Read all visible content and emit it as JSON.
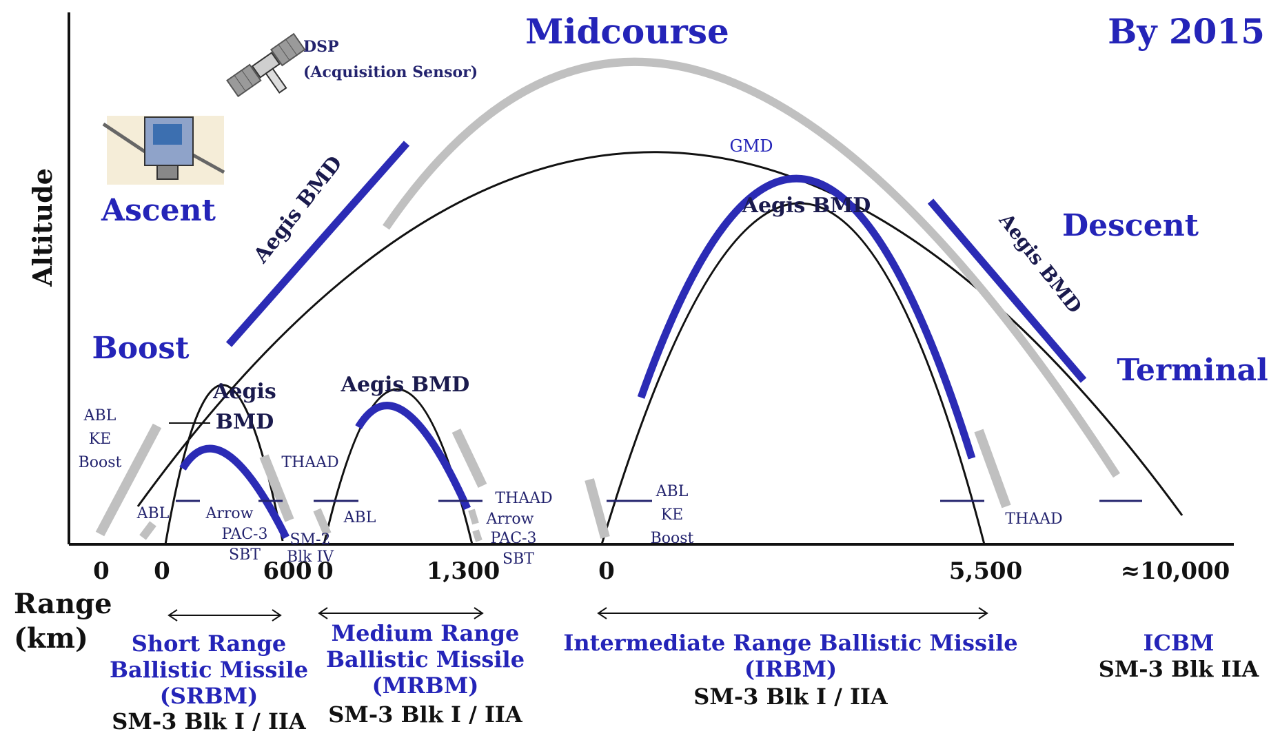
{
  "header": {
    "year_label": "By 2015",
    "y_axis_label": "Altitude",
    "x_axis_label_line1": "Range",
    "x_axis_label_line2": "(km)"
  },
  "phases": {
    "midcourse": "Midcourse",
    "ascent": "Ascent",
    "boost": "Boost",
    "descent": "Descent",
    "terminal": "Terminal"
  },
  "sensors": {
    "dsp_line1": "DSP",
    "dsp_line2": "(Acquisition Sensor)",
    "dsp_icon": "satellite-icon",
    "ascent_icon": "satellite-icon"
  },
  "trajectory_labels": {
    "icbm_ascent_aegis": "Aegis BMD",
    "icbm_descent_aegis": "Aegis BMD",
    "gmd": "GMD",
    "irbm_aegis": "Aegis BMD",
    "mrbm_aegis": "Aegis BMD",
    "srbm_aegis_line1": "Aegis",
    "srbm_aegis_line2": "BMD"
  },
  "small_labels": {
    "abl_ke_boost_left_1": "ABL",
    "abl_ke_boost_left_2": "KE",
    "abl_ke_boost_left_3": "Boost",
    "abl_srbm": "ABL",
    "thaad_srbm": "THAAD",
    "arrow_srbm": "Arrow",
    "pac3_srbm": "PAC-3",
    "sbt_srbm": "SBT",
    "sm2_line1": "SM-2",
    "sm2_line2": "Blk IV",
    "abl_mrbm": "ABL",
    "thaad_mrbm": "THAAD",
    "arrow_mrbm": "Arrow",
    "pac3_mrbm": "PAC-3",
    "sbt_mrbm": "SBT",
    "abl_ke_boost_irbm_1": "ABL",
    "abl_ke_boost_irbm_2": "KE",
    "abl_ke_boost_irbm_3": "Boost",
    "thaad_irbm": "THAAD"
  },
  "range_ticks": [
    "0",
    "0",
    "600",
    "0",
    "1,300",
    "0",
    "5,500",
    "≈10,000"
  ],
  "categories": [
    {
      "line1": "Short Range",
      "line2": "Ballistic Missile",
      "line3": "(SRBM)",
      "interceptor": "SM-3 Blk I / IIA"
    },
    {
      "line1": "Medium Range",
      "line2": "Ballistic Missile",
      "line3": "(MRBM)",
      "interceptor": "SM-3 Blk I / IIA"
    },
    {
      "line1": "Intermediate Range Ballistic Missile",
      "line2": "(IRBM)",
      "interceptor": "SM-3 Blk I / IIA"
    },
    {
      "line1": "ICBM",
      "interceptor": "SM-3 Blk IIA"
    }
  ],
  "colors": {
    "phase_blue": "#2424b8",
    "aegis_segment": "#2b2bb5",
    "gmd_gray": "#bdbdbd",
    "trajectory_black": "#111111"
  }
}
